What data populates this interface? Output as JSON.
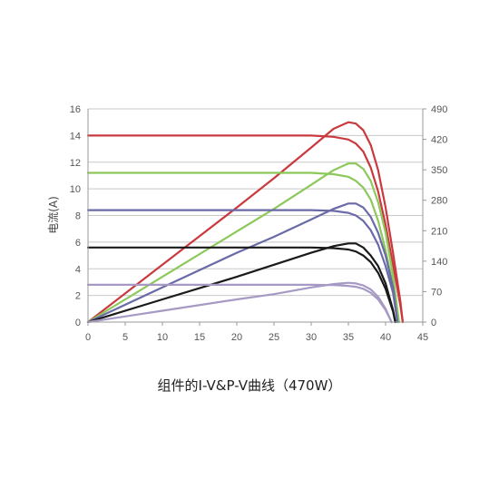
{
  "chart_data": {
    "type": "line",
    "caption": "组件的I-V&P-V曲线（470W）",
    "ylabel": "电流(A)",
    "xlabel": "",
    "y2label": "",
    "xlim": [
      0,
      45
    ],
    "ylim": [
      0,
      16
    ],
    "y2lim": [
      0,
      490
    ],
    "x_ticks": [
      "0",
      "5",
      "10",
      "15",
      "20",
      "25",
      "30",
      "35",
      "40",
      "45"
    ],
    "y_ticks": [
      "0",
      "2",
      "4",
      "6",
      "8",
      "10",
      "12",
      "14",
      "16"
    ],
    "y2_ticks": [
      "0",
      "70",
      "140",
      "210",
      "280",
      "350",
      "420",
      "490"
    ],
    "grid": true,
    "legend": "none",
    "series": [
      {
        "kind": "IV",
        "color": "#c9393e",
        "points": [
          [
            0,
            14.0
          ],
          [
            25,
            14.0
          ],
          [
            30,
            14.0
          ],
          [
            33,
            13.9
          ],
          [
            35,
            13.7
          ],
          [
            36,
            13.4
          ],
          [
            37,
            12.8
          ],
          [
            38,
            11.6
          ],
          [
            39,
            9.8
          ],
          [
            40,
            7.3
          ],
          [
            41,
            4.3
          ],
          [
            42,
            1.2
          ],
          [
            42.3,
            0
          ]
        ]
      },
      {
        "kind": "PV",
        "color": "#c9393e",
        "points": [
          [
            0,
            0
          ],
          [
            10,
            4.3
          ],
          [
            20,
            8.6
          ],
          [
            25,
            10.8
          ],
          [
            30,
            13.1
          ],
          [
            33,
            14.5
          ],
          [
            35,
            15.0
          ],
          [
            36,
            14.9
          ],
          [
            37,
            14.4
          ],
          [
            38,
            13.3
          ],
          [
            39,
            11.4
          ],
          [
            40,
            8.6
          ],
          [
            41,
            5.2
          ],
          [
            42,
            1.5
          ],
          [
            42.3,
            0
          ]
        ]
      },
      {
        "kind": "IV",
        "color": "#8cc85a",
        "points": [
          [
            0,
            11.2
          ],
          [
            25,
            11.2
          ],
          [
            30,
            11.2
          ],
          [
            33,
            11.1
          ],
          [
            35,
            10.9
          ],
          [
            36,
            10.6
          ],
          [
            37,
            10.1
          ],
          [
            38,
            9.2
          ],
          [
            39,
            7.6
          ],
          [
            40,
            5.4
          ],
          [
            41,
            2.8
          ],
          [
            41.8,
            0
          ]
        ]
      },
      {
        "kind": "PV",
        "color": "#8cc85a",
        "points": [
          [
            0,
            0
          ],
          [
            10,
            3.4
          ],
          [
            20,
            6.8
          ],
          [
            25,
            8.5
          ],
          [
            30,
            10.3
          ],
          [
            33,
            11.4
          ],
          [
            35,
            11.9
          ],
          [
            36,
            11.9
          ],
          [
            37,
            11.5
          ],
          [
            38,
            10.6
          ],
          [
            39,
            9.0
          ],
          [
            40,
            6.7
          ],
          [
            41,
            3.5
          ],
          [
            41.8,
            0
          ]
        ]
      },
      {
        "kind": "IV",
        "color": "#6a6aa8",
        "points": [
          [
            0,
            8.4
          ],
          [
            25,
            8.4
          ],
          [
            30,
            8.4
          ],
          [
            33,
            8.35
          ],
          [
            35,
            8.2
          ],
          [
            36,
            8.0
          ],
          [
            37,
            7.6
          ],
          [
            38,
            6.9
          ],
          [
            39,
            5.8
          ],
          [
            40,
            4.2
          ],
          [
            41,
            2.2
          ],
          [
            41.6,
            0
          ]
        ]
      },
      {
        "kind": "PV",
        "color": "#6a6aa8",
        "points": [
          [
            0,
            0
          ],
          [
            10,
            2.6
          ],
          [
            20,
            5.2
          ],
          [
            25,
            6.4
          ],
          [
            30,
            7.7
          ],
          [
            33,
            8.5
          ],
          [
            35,
            8.9
          ],
          [
            36,
            8.9
          ],
          [
            37,
            8.6
          ],
          [
            38,
            7.9
          ],
          [
            39,
            6.7
          ],
          [
            40,
            5.0
          ],
          [
            41,
            2.6
          ],
          [
            41.6,
            0
          ]
        ]
      },
      {
        "kind": "IV",
        "color": "#1a1a1a",
        "points": [
          [
            0,
            5.6
          ],
          [
            25,
            5.6
          ],
          [
            30,
            5.6
          ],
          [
            33,
            5.55
          ],
          [
            35,
            5.45
          ],
          [
            36,
            5.3
          ],
          [
            37,
            5.0
          ],
          [
            38,
            4.5
          ],
          [
            39,
            3.7
          ],
          [
            40,
            2.5
          ],
          [
            41,
            0.8
          ],
          [
            41.3,
            0
          ]
        ]
      },
      {
        "kind": "PV",
        "color": "#1a1a1a",
        "points": [
          [
            0,
            0
          ],
          [
            10,
            1.7
          ],
          [
            20,
            3.4
          ],
          [
            25,
            4.3
          ],
          [
            30,
            5.2
          ],
          [
            33,
            5.7
          ],
          [
            35,
            5.9
          ],
          [
            36,
            5.9
          ],
          [
            37,
            5.6
          ],
          [
            38,
            5.0
          ],
          [
            39,
            4.2
          ],
          [
            40,
            2.9
          ],
          [
            41,
            0.9
          ],
          [
            41.3,
            0
          ]
        ]
      },
      {
        "kind": "IV",
        "color": "#a69ac4",
        "points": [
          [
            0,
            2.8
          ],
          [
            25,
            2.8
          ],
          [
            30,
            2.8
          ],
          [
            33,
            2.78
          ],
          [
            35,
            2.72
          ],
          [
            36,
            2.65
          ],
          [
            37,
            2.5
          ],
          [
            38,
            2.2
          ],
          [
            39,
            1.7
          ],
          [
            40,
            0.9
          ],
          [
            40.8,
            0
          ]
        ]
      },
      {
        "kind": "PV",
        "color": "#a69ac4",
        "points": [
          [
            0,
            0
          ],
          [
            10,
            0.85
          ],
          [
            20,
            1.7
          ],
          [
            25,
            2.1
          ],
          [
            30,
            2.6
          ],
          [
            33,
            2.85
          ],
          [
            35,
            2.95
          ],
          [
            36,
            2.9
          ],
          [
            37,
            2.75
          ],
          [
            38,
            2.45
          ],
          [
            39,
            1.9
          ],
          [
            40,
            1.0
          ],
          [
            40.8,
            0
          ]
        ]
      }
    ]
  }
}
